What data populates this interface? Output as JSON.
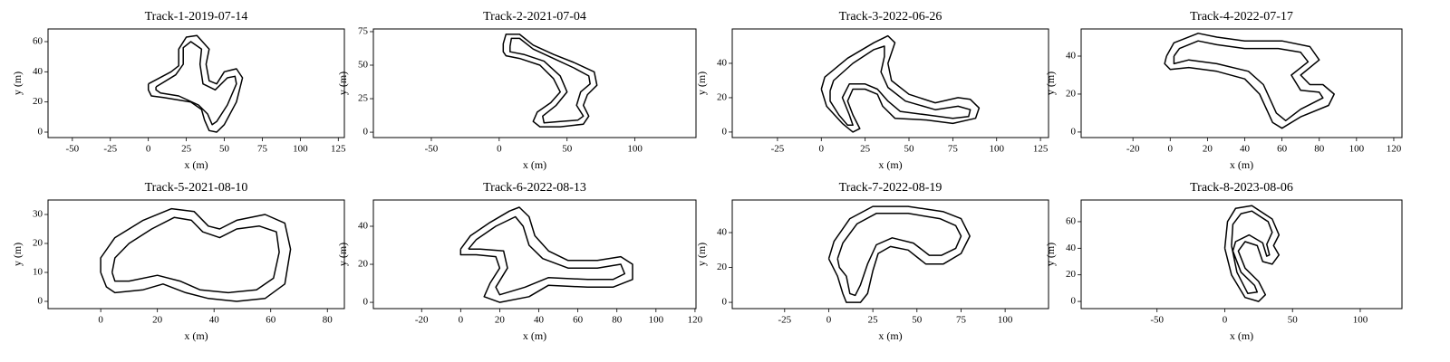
{
  "chart_data": [
    {
      "type": "line",
      "title": "Track-1-2019-07-14",
      "xlabel": "x (m)",
      "ylabel": "y (m)",
      "xlim": [
        -66,
        129
      ],
      "ylim": [
        -3.6,
        68.4
      ],
      "xticks": [
        -50,
        -25,
        0,
        25,
        50,
        75,
        100,
        125
      ],
      "yticks": [
        0,
        20,
        40,
        60
      ],
      "series": [
        {
          "color": "#000000",
          "x": [
            0,
            15,
            20,
            20,
            25,
            32,
            40,
            38,
            40,
            45,
            50,
            58,
            62,
            58,
            50,
            45,
            40,
            37,
            35,
            28,
            10,
            2,
            0,
            0
          ],
          "values": [
            32,
            40,
            44,
            55,
            63,
            64,
            55,
            45,
            34,
            32,
            40,
            42,
            36,
            20,
            5,
            0,
            1,
            8,
            15,
            20,
            23,
            24,
            28,
            32
          ]
        },
        {
          "color": "#000000",
          "x": [
            5,
            18,
            23,
            23,
            28,
            35,
            34,
            36,
            44,
            52,
            57,
            58,
            52,
            45,
            42,
            39,
            33,
            20,
            8,
            5,
            5
          ],
          "values": [
            30,
            38,
            45,
            56,
            60,
            55,
            45,
            32,
            28,
            36,
            37,
            32,
            18,
            7,
            5,
            12,
            18,
            24,
            26,
            28,
            30
          ]
        }
      ]
    },
    {
      "type": "line",
      "title": "Track-2-2021-07-04",
      "xlabel": "x (m)",
      "ylabel": "y (m)",
      "xlim": [
        -92.7,
        145
      ],
      "ylim": [
        -4,
        77
      ],
      "xticks": [
        -50,
        0,
        50,
        100
      ],
      "yticks": [
        0,
        25,
        50,
        75
      ],
      "series": [
        {
          "color": "#000000",
          "x": [
            3,
            5,
            15,
            25,
            40,
            55,
            70,
            72,
            65,
            62,
            66,
            62,
            45,
            30,
            25,
            28,
            38,
            45,
            40,
            30,
            15,
            5,
            3,
            3
          ],
          "values": [
            66,
            73,
            73,
            65,
            58,
            52,
            45,
            35,
            28,
            20,
            12,
            6,
            4,
            4,
            8,
            15,
            22,
            30,
            40,
            50,
            55,
            57,
            60,
            66
          ]
        },
        {
          "color": "#000000",
          "x": [
            8,
            9,
            15,
            25,
            40,
            55,
            66,
            67,
            60,
            57,
            62,
            58,
            45,
            33,
            32,
            42,
            50,
            45,
            33,
            18,
            8,
            8
          ],
          "values": [
            64,
            70,
            70,
            62,
            55,
            48,
            42,
            36,
            30,
            20,
            12,
            9,
            8,
            7,
            12,
            20,
            30,
            42,
            53,
            58,
            60,
            64
          ]
        }
      ]
    },
    {
      "type": "line",
      "title": "Track-3-2022-06-26",
      "xlabel": "x (m)",
      "ylabel": "y (m)",
      "xlim": [
        -50.8,
        129.6
      ],
      "ylim": [
        -3.2,
        60
      ],
      "xticks": [
        -25,
        0,
        25,
        50,
        75,
        100,
        125
      ],
      "yticks": [
        0,
        20,
        40
      ],
      "series": [
        {
          "color": "#000000",
          "x": [
            0,
            2,
            15,
            30,
            38,
            42,
            38,
            40,
            50,
            65,
            78,
            85,
            90,
            88,
            75,
            60,
            42,
            35,
            32,
            25,
            18,
            15,
            18,
            22,
            18,
            12,
            3,
            0
          ],
          "values": [
            25,
            32,
            43,
            52,
            56,
            52,
            40,
            30,
            22,
            17,
            20,
            19,
            14,
            8,
            5,
            7,
            8,
            15,
            22,
            25,
            25,
            18,
            10,
            2,
            0,
            5,
            15,
            25
          ]
        },
        {
          "color": "#000000",
          "x": [
            5,
            7,
            18,
            30,
            36,
            36,
            34,
            38,
            48,
            65,
            78,
            85,
            84,
            75,
            60,
            45,
            38,
            32,
            25,
            16,
            12,
            16,
            18,
            15,
            10,
            5,
            5
          ],
          "values": [
            24,
            30,
            40,
            48,
            50,
            44,
            35,
            26,
            18,
            13,
            15,
            13,
            9,
            8,
            10,
            12,
            18,
            25,
            28,
            28,
            20,
            10,
            4,
            4,
            10,
            18,
            24
          ]
        }
      ]
    },
    {
      "type": "line",
      "title": "Track-4-2022-07-17",
      "xlabel": "x (m)",
      "ylabel": "y (m)",
      "xlim": [
        -47.8,
        124.4
      ],
      "ylim": [
        -2.9,
        54.3
      ],
      "xticks": [
        -20,
        0,
        20,
        40,
        60,
        80,
        100,
        120
      ],
      "yticks": [
        0,
        20,
        40
      ],
      "series": [
        {
          "color": "#000000",
          "x": [
            -2,
            2,
            15,
            25,
            40,
            60,
            75,
            80,
            70,
            75,
            82,
            88,
            85,
            70,
            60,
            55,
            48,
            40,
            25,
            10,
            0,
            -3,
            -2
          ],
          "values": [
            40,
            47,
            52,
            50,
            48,
            48,
            45,
            38,
            30,
            25,
            25,
            20,
            14,
            8,
            2,
            5,
            20,
            28,
            32,
            34,
            33,
            36,
            40
          ]
        },
        {
          "color": "#000000",
          "x": [
            2,
            5,
            15,
            25,
            40,
            58,
            70,
            74,
            65,
            70,
            80,
            82,
            70,
            62,
            57,
            50,
            42,
            25,
            10,
            2,
            2
          ],
          "values": [
            40,
            44,
            48,
            46,
            44,
            44,
            42,
            37,
            30,
            22,
            21,
            18,
            12,
            6,
            10,
            25,
            32,
            36,
            38,
            36,
            40
          ]
        }
      ]
    },
    {
      "type": "line",
      "title": "Track-5-2021-08-10",
      "xlabel": "x (m)",
      "ylabel": "y (m)",
      "xlim": [
        -18.6,
        86
      ],
      "ylim": [
        -2.5,
        35
      ],
      "xticks": [
        0,
        20,
        40,
        60,
        80
      ],
      "yticks": [
        0,
        10,
        20,
        30
      ],
      "series": [
        {
          "color": "#000000",
          "x": [
            0,
            0,
            5,
            15,
            25,
            33,
            38,
            42,
            48,
            58,
            65,
            67,
            65,
            58,
            48,
            38,
            30,
            22,
            15,
            5,
            2,
            0
          ],
          "values": [
            10,
            15,
            22,
            28,
            32,
            31,
            26,
            25,
            28,
            30,
            27,
            18,
            6,
            1,
            0,
            1,
            3,
            6,
            4,
            3,
            5,
            10
          ]
        },
        {
          "color": "#000000",
          "x": [
            4,
            5,
            10,
            18,
            26,
            32,
            36,
            42,
            48,
            56,
            62,
            63,
            61,
            55,
            45,
            35,
            28,
            20,
            10,
            5,
            4
          ],
          "values": [
            10,
            15,
            20,
            25,
            29,
            28,
            24,
            22,
            25,
            26,
            24,
            17,
            8,
            4,
            3,
            4,
            7,
            9,
            7,
            7,
            10
          ]
        }
      ]
    },
    {
      "type": "line",
      "title": "Track-6-2022-08-13",
      "xlabel": "x (m)",
      "ylabel": "y (m)",
      "xlim": [
        -44.7,
        120.5
      ],
      "ylim": [
        -3.3,
        53.8
      ],
      "xticks": [
        -20,
        0,
        20,
        40,
        60,
        80,
        100,
        120
      ],
      "yticks": [
        0,
        20,
        40
      ],
      "series": [
        {
          "color": "#000000",
          "x": [
            0,
            5,
            15,
            25,
            30,
            35,
            38,
            45,
            55,
            70,
            82,
            88,
            88,
            78,
            65,
            45,
            35,
            20,
            12,
            15,
            20,
            18,
            8,
            0,
            0
          ],
          "values": [
            28,
            35,
            42,
            48,
            50,
            45,
            35,
            27,
            22,
            22,
            24,
            20,
            12,
            8,
            8,
            9,
            3,
            0,
            3,
            10,
            18,
            24,
            25,
            25,
            28
          ]
        },
        {
          "color": "#000000",
          "x": [
            4,
            8,
            18,
            28,
            32,
            35,
            42,
            55,
            70,
            82,
            84,
            78,
            65,
            45,
            33,
            20,
            18,
            24,
            22,
            10,
            4
          ],
          "values": [
            28,
            33,
            40,
            45,
            40,
            30,
            23,
            18,
            18,
            20,
            15,
            12,
            12,
            13,
            8,
            4,
            8,
            18,
            27,
            28,
            28
          ]
        }
      ]
    },
    {
      "type": "line",
      "title": "Track-7-2022-08-19",
      "xlabel": "x (m)",
      "ylabel": "y (m)",
      "xlim": [
        -54.7,
        124.6
      ],
      "ylim": [
        -3.6,
        58.7
      ],
      "xticks": [
        -25,
        0,
        25,
        50,
        75,
        100
      ],
      "yticks": [
        0,
        20,
        40
      ],
      "series": [
        {
          "color": "#000000",
          "x": [
            0,
            3,
            12,
            25,
            45,
            65,
            75,
            80,
            75,
            65,
            55,
            45,
            35,
            28,
            25,
            22,
            18,
            10,
            8,
            5,
            0
          ],
          "values": [
            25,
            35,
            48,
            55,
            55,
            52,
            48,
            38,
            28,
            22,
            22,
            30,
            32,
            28,
            18,
            5,
            0,
            0,
            5,
            15,
            25
          ]
        },
        {
          "color": "#000000",
          "x": [
            5,
            8,
            16,
            27,
            45,
            63,
            72,
            75,
            72,
            64,
            57,
            48,
            36,
            27,
            22,
            18,
            15,
            12,
            10,
            6,
            5
          ],
          "values": [
            25,
            34,
            45,
            51,
            51,
            48,
            44,
            38,
            31,
            27,
            27,
            34,
            37,
            33,
            22,
            10,
            4,
            5,
            15,
            20,
            25
          ]
        }
      ]
    },
    {
      "type": "line",
      "title": "Track-8-2023-08-06",
      "xlabel": "x (m)",
      "ylabel": "y (m)",
      "xlim": [
        -106,
        130.8
      ],
      "ylim": [
        -5.4,
        76.3
      ],
      "xticks": [
        -50,
        0,
        50,
        100
      ],
      "yticks": [
        0,
        20,
        40,
        60
      ],
      "series": [
        {
          "color": "#000000",
          "x": [
            0,
            2,
            8,
            20,
            35,
            40,
            36,
            40,
            35,
            28,
            24,
            15,
            10,
            15,
            25,
            30,
            25,
            15,
            5,
            0
          ],
          "values": [
            40,
            60,
            70,
            72,
            62,
            50,
            42,
            35,
            28,
            30,
            42,
            45,
            38,
            25,
            15,
            5,
            0,
            3,
            20,
            40
          ]
        },
        {
          "color": "#000000",
          "x": [
            5,
            6,
            12,
            20,
            32,
            35,
            31,
            33,
            31,
            28,
            18,
            8,
            6,
            12,
            22,
            24,
            17,
            9,
            5
          ],
          "values": [
            42,
            58,
            66,
            68,
            60,
            52,
            43,
            35,
            34,
            44,
            50,
            45,
            38,
            22,
            12,
            7,
            6,
            22,
            42
          ]
        }
      ]
    }
  ]
}
